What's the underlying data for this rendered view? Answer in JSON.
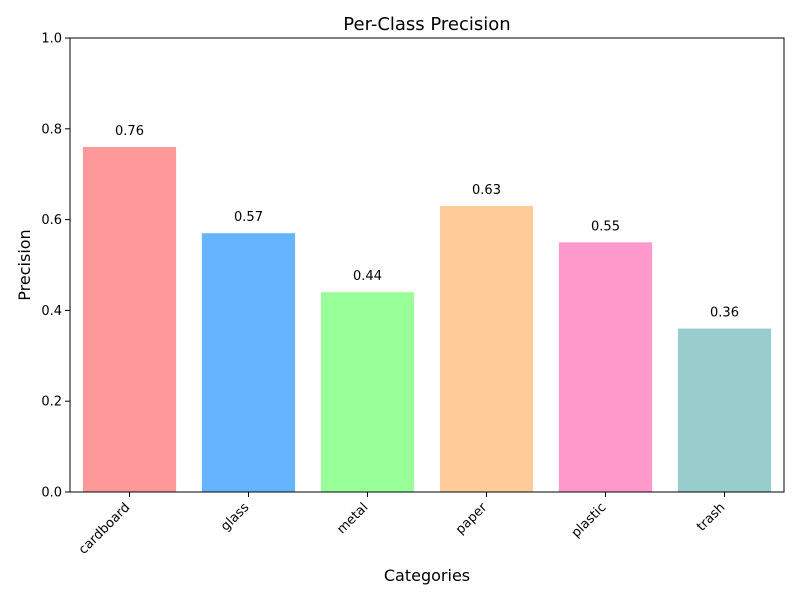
{
  "chart_data": {
    "type": "bar",
    "title": "Per-Class Precision",
    "xlabel": "Categories",
    "ylabel": "Precision",
    "categories": [
      "cardboard",
      "glass",
      "metal",
      "paper",
      "plastic",
      "trash"
    ],
    "values": [
      0.76,
      0.57,
      0.44,
      0.63,
      0.55,
      0.36
    ],
    "value_labels": [
      "0.76",
      "0.57",
      "0.44",
      "0.63",
      "0.55",
      "0.36"
    ],
    "colors": [
      "#ff9999",
      "#66b3ff",
      "#99ff99",
      "#ffcc99",
      "#ff99cc",
      "#99cccc"
    ],
    "ylim": [
      0,
      1.0
    ],
    "yticks": [
      0.0,
      0.2,
      0.4,
      0.6,
      0.8,
      1.0
    ],
    "ytick_labels": [
      "0.0",
      "0.2",
      "0.4",
      "0.6",
      "0.8",
      "1.0"
    ],
    "grid": false,
    "legend": false
  }
}
